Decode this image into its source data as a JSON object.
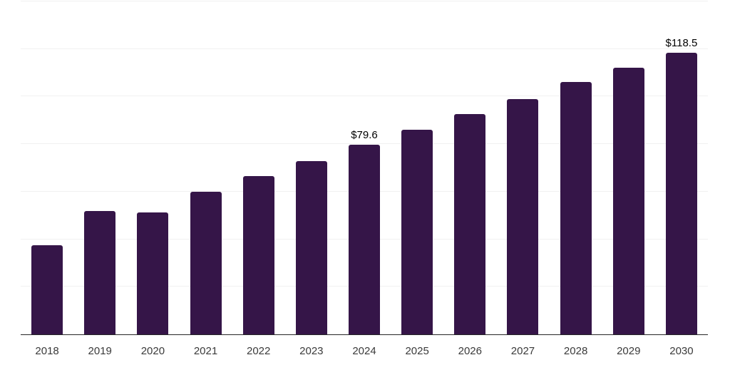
{
  "chart_data": {
    "type": "bar",
    "title": "",
    "xlabel": "",
    "ylabel": "",
    "categories": [
      "2018",
      "2019",
      "2020",
      "2021",
      "2022",
      "2023",
      "2024",
      "2025",
      "2026",
      "2027",
      "2028",
      "2029",
      "2030"
    ],
    "values": [
      37.4,
      51.9,
      51.2,
      60.0,
      66.5,
      72.8,
      79.6,
      86.0,
      92.5,
      99.0,
      106.0,
      112.2,
      118.5
    ],
    "labeled_points": [
      {
        "category": "2024",
        "label": "$79.6"
      },
      {
        "category": "2030",
        "label": "$118.5"
      }
    ],
    "ylim": [
      0,
      140
    ],
    "grid_step": 20,
    "grid": "horizontal-only",
    "legend": "none",
    "y_tick_labels": "none",
    "colors": {
      "bar": "#351548",
      "gridline": "#f1f1f1",
      "axis_line": "#262626",
      "x_tick_label": "#3a3a3a",
      "data_label": "#000000",
      "background": "#ffffff"
    }
  }
}
